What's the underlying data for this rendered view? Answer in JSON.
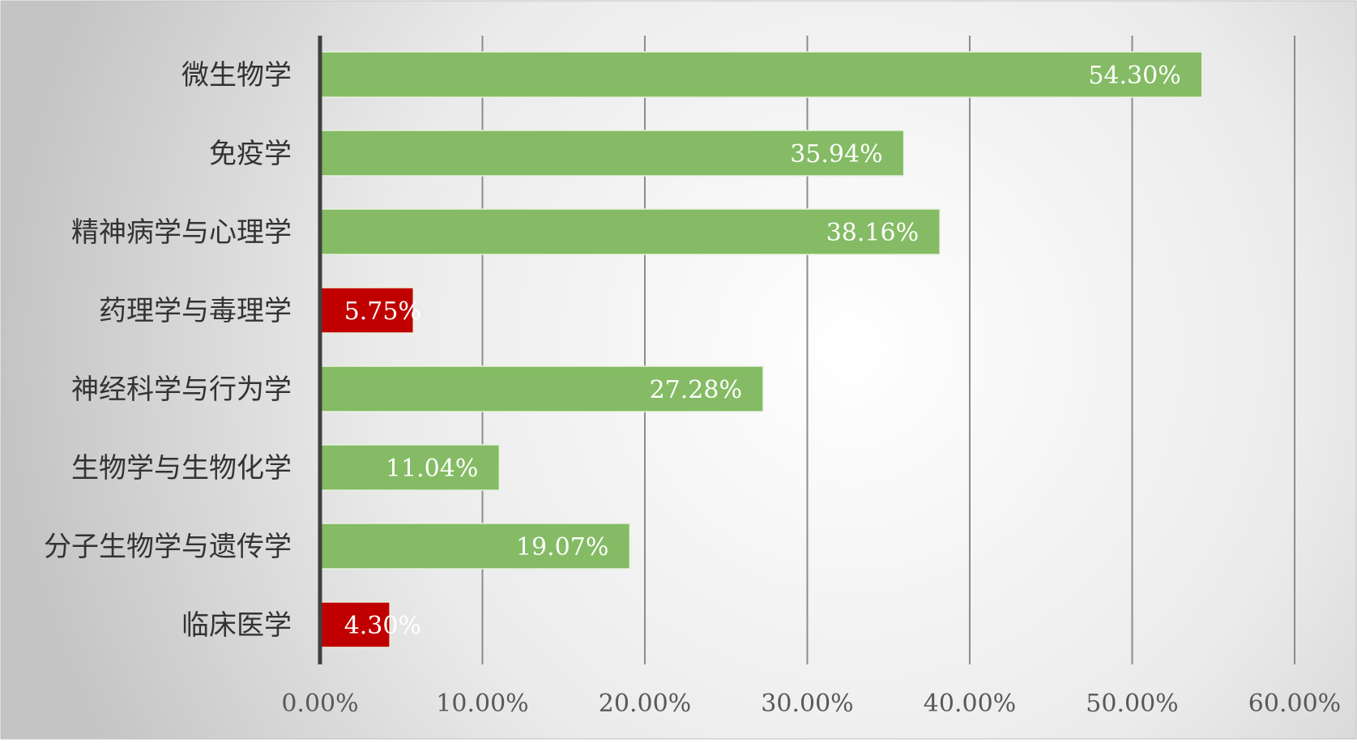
{
  "chart_data": {
    "type": "bar",
    "orientation": "horizontal",
    "title": "",
    "xlabel": "",
    "ylabel": "",
    "categories": [
      "微生物学",
      "免疫学",
      "精神病学与心理学",
      "药理学与毒理学",
      "神经科学与行为学",
      "生物学与生物化学",
      "分子生物学与遗传学",
      "临床医学"
    ],
    "values": [
      54.3,
      35.94,
      38.16,
      5.75,
      27.28,
      11.04,
      19.07,
      4.3
    ],
    "value_labels": [
      "54.30%",
      "35.94%",
      "38.16%",
      "5.75%",
      "27.28%",
      "11.04%",
      "19.07%",
      "4.30%"
    ],
    "bar_colors": [
      "#84BB64",
      "#84BB64",
      "#84BB64",
      "#C00000",
      "#84BB64",
      "#84BB64",
      "#84BB64",
      "#C00000"
    ],
    "xlim": [
      0,
      60
    ],
    "x_ticks": [
      0,
      10,
      20,
      30,
      40,
      50,
      60
    ],
    "x_tick_labels": [
      "0.00%",
      "10.00%",
      "20.00%",
      "30.00%",
      "40.00%",
      "50.00%",
      "60.00%"
    ],
    "grid": true,
    "legend": "none",
    "colors": {
      "positive": "#84BB64",
      "negative": "#C00000",
      "label_text": "#FFFFFF",
      "axis_text": "#595959",
      "category_text": "#333333",
      "gridline": "#8C8C8C",
      "axis_line": "#404040"
    }
  }
}
